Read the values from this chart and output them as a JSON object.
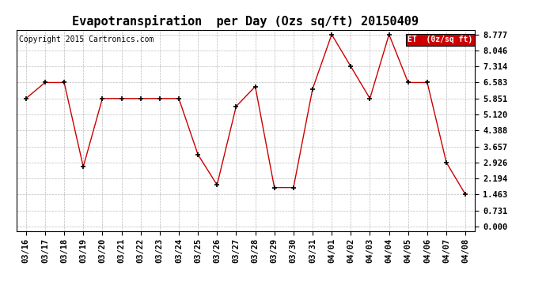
{
  "title": "Evapotranspiration  per Day (Ozs sq/ft) 20150409",
  "copyright": "Copyright 2015 Cartronics.com",
  "legend_label": "ET  (0z/sq ft)",
  "legend_bg": "#cc0000",
  "legend_text_color": "#ffffff",
  "dates": [
    "03/16",
    "03/17",
    "03/18",
    "03/19",
    "03/20",
    "03/21",
    "03/22",
    "03/23",
    "03/24",
    "03/25",
    "03/26",
    "03/27",
    "03/28",
    "03/29",
    "03/30",
    "03/31",
    "04/01",
    "04/02",
    "04/03",
    "04/04",
    "04/05",
    "04/06",
    "04/07",
    "04/08"
  ],
  "y_values": [
    5.851,
    6.583,
    6.583,
    2.731,
    5.851,
    5.851,
    5.851,
    5.851,
    5.851,
    3.291,
    1.9,
    5.49,
    6.4,
    1.78,
    1.78,
    6.29,
    8.777,
    7.314,
    5.851,
    8.777,
    6.583,
    6.583,
    2.926,
    1.463
  ],
  "line_color": "#cc0000",
  "marker_color": "#000000",
  "bg_color": "#ffffff",
  "plot_bg_color": "#ffffff",
  "grid_color": "#aaaaaa",
  "yticks": [
    0.0,
    0.731,
    1.463,
    2.194,
    2.926,
    3.657,
    4.388,
    5.12,
    5.851,
    6.583,
    7.314,
    8.046,
    8.777
  ],
  "ylim_min": -0.2,
  "ylim_max": 9.0,
  "title_fontsize": 11,
  "tick_fontsize": 7.5,
  "copyright_fontsize": 7
}
